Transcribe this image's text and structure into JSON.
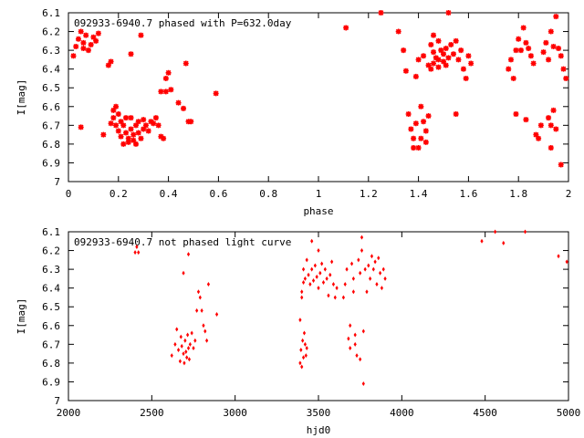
{
  "chart_data": [
    {
      "type": "scatter",
      "title": "092933-6940.7 phased with P=632.0day",
      "xlabel": "phase",
      "ylabel": "I[mag]",
      "xlim": [
        0,
        2
      ],
      "ylim": [
        7,
        6.1
      ],
      "y_inverted": true,
      "xticks": [
        "0",
        "0.2",
        "0.4",
        "0.6",
        "0.8",
        "1",
        "1.2",
        "1.4",
        "1.6",
        "1.8",
        "2"
      ],
      "yticks": [
        "6.1",
        "6.2",
        "6.3",
        "6.4",
        "6.5",
        "6.6",
        "6.7",
        "6.8",
        "6.9",
        "7"
      ],
      "grid": false,
      "legend": "none",
      "marker": "star",
      "color": "#ff0000",
      "points": [
        [
          0.02,
          6.33
        ],
        [
          0.03,
          6.28
        ],
        [
          0.04,
          6.24
        ],
        [
          0.05,
          6.2
        ],
        [
          0.06,
          6.26
        ],
        [
          0.06,
          6.29
        ],
        [
          0.07,
          6.22
        ],
        [
          0.08,
          6.3
        ],
        [
          0.09,
          6.27
        ],
        [
          0.1,
          6.23
        ],
        [
          0.11,
          6.25
        ],
        [
          0.05,
          6.71
        ],
        [
          0.12,
          6.21
        ],
        [
          0.14,
          6.75
        ],
        [
          0.16,
          6.38
        ],
        [
          0.17,
          6.36
        ],
        [
          0.17,
          6.69
        ],
        [
          0.18,
          6.62
        ],
        [
          0.18,
          6.66
        ],
        [
          0.19,
          6.7
        ],
        [
          0.19,
          6.6
        ],
        [
          0.2,
          6.73
        ],
        [
          0.2,
          6.64
        ],
        [
          0.21,
          6.68
        ],
        [
          0.21,
          6.76
        ],
        [
          0.22,
          6.8
        ],
        [
          0.22,
          6.7
        ],
        [
          0.23,
          6.66
        ],
        [
          0.23,
          6.74
        ],
        [
          0.24,
          6.79
        ],
        [
          0.24,
          6.77
        ],
        [
          0.25,
          6.72
        ],
        [
          0.25,
          6.66
        ],
        [
          0.26,
          6.78
        ],
        [
          0.26,
          6.75
        ],
        [
          0.27,
          6.7
        ],
        [
          0.27,
          6.8
        ],
        [
          0.28,
          6.68
        ],
        [
          0.28,
          6.74
        ],
        [
          0.29,
          6.77
        ],
        [
          0.3,
          6.72
        ],
        [
          0.3,
          6.67
        ],
        [
          0.31,
          6.7
        ],
        [
          0.32,
          6.73
        ],
        [
          0.33,
          6.68
        ],
        [
          0.34,
          6.69
        ],
        [
          0.35,
          6.66
        ],
        [
          0.36,
          6.7
        ],
        [
          0.37,
          6.76
        ],
        [
          0.38,
          6.77
        ],
        [
          0.37,
          6.52
        ],
        [
          0.39,
          6.52
        ],
        [
          0.39,
          6.45
        ],
        [
          0.4,
          6.42
        ],
        [
          0.41,
          6.51
        ],
        [
          0.44,
          6.58
        ],
        [
          0.46,
          6.61
        ],
        [
          0.47,
          6.37
        ],
        [
          0.48,
          6.68
        ],
        [
          0.49,
          6.68
        ],
        [
          0.59,
          6.53
        ],
        [
          0.25,
          6.32
        ],
        [
          0.29,
          6.22
        ],
        [
          1.11,
          6.18
        ],
        [
          1.25,
          6.1
        ],
        [
          1.32,
          6.2
        ],
        [
          1.34,
          6.3
        ],
        [
          1.35,
          6.41
        ],
        [
          1.36,
          6.64
        ],
        [
          1.37,
          6.72
        ],
        [
          1.38,
          6.77
        ],
        [
          1.38,
          6.82
        ],
        [
          1.39,
          6.69
        ],
        [
          1.39,
          6.44
        ],
        [
          1.4,
          6.82
        ],
        [
          1.4,
          6.35
        ],
        [
          1.41,
          6.6
        ],
        [
          1.41,
          6.77
        ],
        [
          1.42,
          6.68
        ],
        [
          1.42,
          6.33
        ],
        [
          1.43,
          6.73
        ],
        [
          1.43,
          6.79
        ],
        [
          1.44,
          6.65
        ],
        [
          1.44,
          6.38
        ],
        [
          1.45,
          6.27
        ],
        [
          1.45,
          6.4
        ],
        [
          1.46,
          6.37
        ],
        [
          1.46,
          6.31
        ],
        [
          1.47,
          6.34
        ],
        [
          1.48,
          6.35
        ],
        [
          1.48,
          6.39
        ],
        [
          1.49,
          6.3
        ],
        [
          1.5,
          6.32
        ],
        [
          1.5,
          6.36
        ],
        [
          1.51,
          6.29
        ],
        [
          1.51,
          6.38
        ],
        [
          1.52,
          6.1
        ],
        [
          1.52,
          6.34
        ],
        [
          1.53,
          6.27
        ],
        [
          1.54,
          6.32
        ],
        [
          1.55,
          6.25
        ],
        [
          1.55,
          6.64
        ],
        [
          1.56,
          6.35
        ],
        [
          1.57,
          6.3
        ],
        [
          1.58,
          6.4
        ],
        [
          1.59,
          6.45
        ],
        [
          1.6,
          6.33
        ],
        [
          1.61,
          6.37
        ],
        [
          1.46,
          6.22
        ],
        [
          1.48,
          6.25
        ],
        [
          1.76,
          6.4
        ],
        [
          1.77,
          6.35
        ],
        [
          1.78,
          6.45
        ],
        [
          1.79,
          6.3
        ],
        [
          1.8,
          6.24
        ],
        [
          1.81,
          6.3
        ],
        [
          1.82,
          6.18
        ],
        [
          1.83,
          6.26
        ],
        [
          1.84,
          6.29
        ],
        [
          1.85,
          6.33
        ],
        [
          1.86,
          6.37
        ],
        [
          1.87,
          6.75
        ],
        [
          1.88,
          6.77
        ],
        [
          1.89,
          6.7
        ],
        [
          1.9,
          6.31
        ],
        [
          1.91,
          6.26
        ],
        [
          1.92,
          6.35
        ],
        [
          1.93,
          6.2
        ],
        [
          1.94,
          6.28
        ],
        [
          1.95,
          6.12
        ],
        [
          1.96,
          6.29
        ],
        [
          1.97,
          6.33
        ],
        [
          1.98,
          6.4
        ],
        [
          1.99,
          6.45
        ],
        [
          1.79,
          6.64
        ],
        [
          1.83,
          6.67
        ],
        [
          1.92,
          6.66
        ],
        [
          1.93,
          6.7
        ],
        [
          1.94,
          6.62
        ],
        [
          1.95,
          6.72
        ],
        [
          1.97,
          6.91
        ],
        [
          1.93,
          6.82
        ]
      ]
    },
    {
      "type": "scatter",
      "title": "092933-6940.7 not phased light curve",
      "xlabel": "hjd0",
      "ylabel": "I[mag]",
      "xlim": [
        2000,
        5000
      ],
      "ylim": [
        7,
        6.1
      ],
      "y_inverted": true,
      "xticks": [
        "2000",
        "2500",
        "3000",
        "3500",
        "4000",
        "4500",
        "5000"
      ],
      "yticks": [
        "6.1",
        "6.2",
        "6.3",
        "6.4",
        "6.5",
        "6.6",
        "6.7",
        "6.8",
        "6.9",
        "7"
      ],
      "grid": false,
      "legend": "none",
      "marker": "dot",
      "color": "#ff0000",
      "points": [
        [
          2400,
          6.21
        ],
        [
          2410,
          6.18
        ],
        [
          2420,
          6.21
        ],
        [
          2620,
          6.76
        ],
        [
          2640,
          6.7
        ],
        [
          2650,
          6.62
        ],
        [
          2660,
          6.73
        ],
        [
          2670,
          6.79
        ],
        [
          2675,
          6.66
        ],
        [
          2680,
          6.71
        ],
        [
          2690,
          6.75
        ],
        [
          2695,
          6.8
        ],
        [
          2700,
          6.68
        ],
        [
          2705,
          6.74
        ],
        [
          2710,
          6.77
        ],
        [
          2715,
          6.65
        ],
        [
          2720,
          6.72
        ],
        [
          2725,
          6.78
        ],
        [
          2730,
          6.7
        ],
        [
          2740,
          6.64
        ],
        [
          2750,
          6.72
        ],
        [
          2760,
          6.68
        ],
        [
          2690,
          6.32
        ],
        [
          2720,
          6.22
        ],
        [
          2770,
          6.52
        ],
        [
          2780,
          6.42
        ],
        [
          2790,
          6.45
        ],
        [
          2800,
          6.52
        ],
        [
          2810,
          6.6
        ],
        [
          2820,
          6.63
        ],
        [
          2830,
          6.68
        ],
        [
          2840,
          6.38
        ],
        [
          2890,
          6.54
        ],
        [
          3390,
          6.8
        ],
        [
          3395,
          6.73
        ],
        [
          3400,
          6.82
        ],
        [
          3405,
          6.68
        ],
        [
          3410,
          6.77
        ],
        [
          3415,
          6.64
        ],
        [
          3420,
          6.7
        ],
        [
          3425,
          6.76
        ],
        [
          3430,
          6.72
        ],
        [
          3390,
          6.57
        ],
        [
          3400,
          6.42
        ],
        [
          3410,
          6.3
        ],
        [
          3420,
          6.35
        ],
        [
          3430,
          6.25
        ],
        [
          3440,
          6.33
        ],
        [
          3450,
          6.38
        ],
        [
          3460,
          6.3
        ],
        [
          3470,
          6.36
        ],
        [
          3480,
          6.28
        ],
        [
          3490,
          6.34
        ],
        [
          3500,
          6.4
        ],
        [
          3510,
          6.32
        ],
        [
          3520,
          6.27
        ],
        [
          3530,
          6.37
        ],
        [
          3540,
          6.3
        ],
        [
          3550,
          6.35
        ],
        [
          3560,
          6.44
        ],
        [
          3570,
          6.33
        ],
        [
          3580,
          6.26
        ],
        [
          3590,
          6.38
        ],
        [
          3600,
          6.45
        ],
        [
          3610,
          6.4
        ],
        [
          3460,
          6.15
        ],
        [
          3500,
          6.2
        ],
        [
          3400,
          6.45
        ],
        [
          3410,
          6.37
        ],
        [
          3650,
          6.45
        ],
        [
          3660,
          6.38
        ],
        [
          3670,
          6.3
        ],
        [
          3680,
          6.67
        ],
        [
          3690,
          6.72
        ],
        [
          3700,
          6.27
        ],
        [
          3710,
          6.35
        ],
        [
          3720,
          6.7
        ],
        [
          3730,
          6.76
        ],
        [
          3740,
          6.25
        ],
        [
          3750,
          6.32
        ],
        [
          3760,
          6.2
        ],
        [
          3770,
          6.63
        ],
        [
          3780,
          6.3
        ],
        [
          3790,
          6.42
        ],
        [
          3800,
          6.28
        ],
        [
          3810,
          6.35
        ],
        [
          3820,
          6.23
        ],
        [
          3830,
          6.3
        ],
        [
          3840,
          6.26
        ],
        [
          3850,
          6.38
        ],
        [
          3860,
          6.24
        ],
        [
          3870,
          6.32
        ],
        [
          3880,
          6.4
        ],
        [
          3890,
          6.3
        ],
        [
          3900,
          6.35
        ],
        [
          3760,
          6.13
        ],
        [
          3770,
          6.91
        ],
        [
          3750,
          6.78
        ],
        [
          3720,
          6.65
        ],
        [
          3690,
          6.6
        ],
        [
          3710,
          6.42
        ],
        [
          4480,
          6.15
        ],
        [
          4560,
          6.1
        ],
        [
          4610,
          6.16
        ],
        [
          4740,
          6.1
        ],
        [
          4940,
          6.23
        ],
        [
          4990,
          6.26
        ]
      ]
    }
  ]
}
